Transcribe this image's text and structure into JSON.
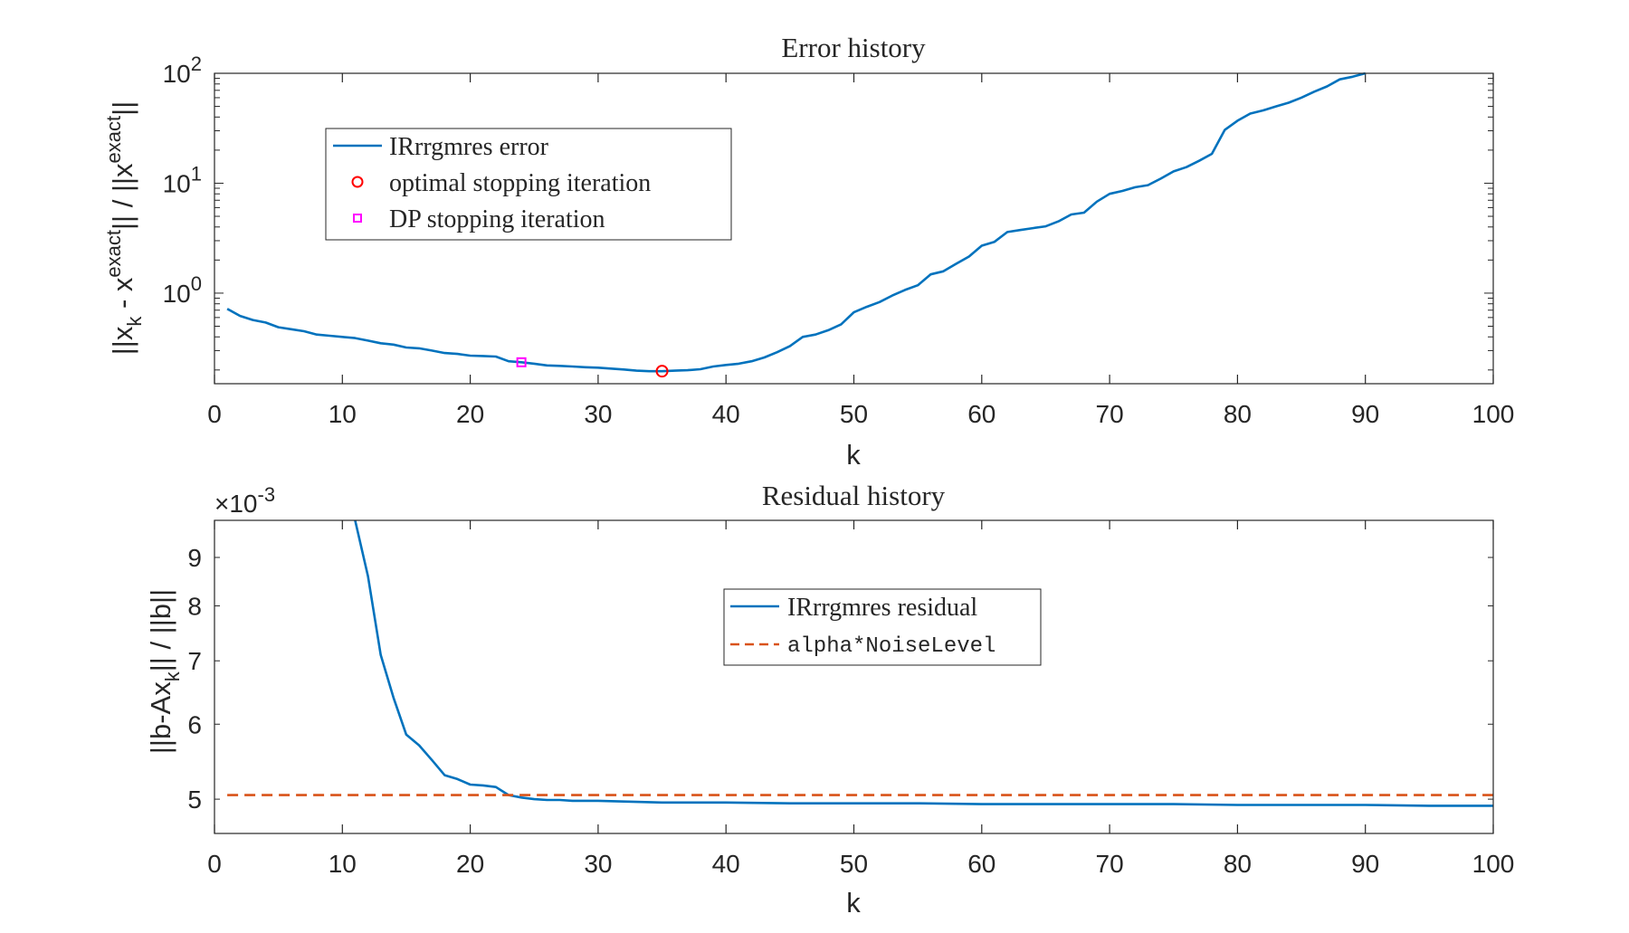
{
  "chart_data": [
    {
      "type": "line",
      "title": "Error history",
      "xlabel": "k",
      "ylabel_parts": [
        "||x",
        "k",
        " - x",
        "exact",
        "|| / ||x",
        "exact",
        "||"
      ],
      "yscale": "log",
      "xlim": [
        0,
        100
      ],
      "ylim": [
        0.15,
        100
      ],
      "xticks": [
        0,
        10,
        20,
        30,
        40,
        50,
        60,
        70,
        80,
        90,
        100
      ],
      "yticks": [
        {
          "value": 1,
          "base": "10",
          "exp": "0"
        },
        {
          "value": 10,
          "base": "10",
          "exp": "1"
        },
        {
          "value": 100,
          "base": "10",
          "exp": "2"
        }
      ],
      "legend_position": "top-left",
      "series": [
        {
          "name": "IRrrgmres error",
          "color": "#0072BD",
          "style": "solid",
          "x": [
            1,
            2,
            3,
            4,
            5,
            6,
            7,
            8,
            9,
            10,
            11,
            12,
            13,
            14,
            15,
            16,
            17,
            18,
            19,
            20,
            21,
            22,
            23,
            24,
            25,
            26,
            27,
            28,
            29,
            30,
            31,
            32,
            33,
            34,
            35,
            36,
            37,
            38,
            39,
            40,
            41,
            42,
            43,
            44,
            45,
            46,
            47,
            48,
            49,
            50,
            51,
            52,
            53,
            54,
            55,
            56,
            57,
            58,
            59,
            60,
            61,
            62,
            63,
            64,
            65,
            66,
            67,
            68,
            69,
            70,
            71,
            72,
            73,
            74,
            75,
            76,
            77,
            78,
            79,
            80,
            81,
            82,
            83,
            84,
            85,
            86,
            87,
            88,
            89,
            90
          ],
          "y": [
            0.72,
            0.62,
            0.57,
            0.54,
            0.49,
            0.47,
            0.45,
            0.42,
            0.41,
            0.4,
            0.39,
            0.37,
            0.35,
            0.34,
            0.32,
            0.315,
            0.3,
            0.285,
            0.28,
            0.27,
            0.268,
            0.265,
            0.24,
            0.235,
            0.228,
            0.22,
            0.218,
            0.215,
            0.212,
            0.21,
            0.206,
            0.202,
            0.197,
            0.195,
            0.195,
            0.197,
            0.199,
            0.203,
            0.215,
            0.222,
            0.228,
            0.24,
            0.26,
            0.29,
            0.33,
            0.4,
            0.42,
            0.46,
            0.52,
            0.67,
            0.75,
            0.83,
            0.95,
            1.07,
            1.18,
            1.48,
            1.58,
            1.85,
            2.15,
            2.7,
            2.93,
            3.6,
            3.75,
            3.9,
            4.05,
            4.5,
            5.2,
            5.4,
            6.8,
            8.0,
            8.5,
            9.2,
            9.6,
            11.0,
            12.8,
            14.0,
            16.0,
            18.5,
            30.5,
            37.0,
            43.0,
            46.0,
            50.0,
            54.0,
            60.0,
            68.0,
            76.0,
            88.0,
            93.0,
            100.0
          ]
        },
        {
          "name": "optimal stopping iteration",
          "color": "#FF0000",
          "marker": "circle",
          "x": [
            35
          ],
          "y": [
            0.195
          ]
        },
        {
          "name": "DP stopping iteration",
          "color": "#FF00FF",
          "marker": "square",
          "x": [
            24
          ],
          "y": [
            0.235
          ]
        }
      ]
    },
    {
      "type": "line",
      "title": "Residual history",
      "xlabel": "k",
      "ylabel_parts": [
        "||b-Ax",
        "k",
        "|| / ||b||"
      ],
      "yscale": "log",
      "xlim": [
        0,
        100
      ],
      "ylim": [
        0.0046,
        0.00985
      ],
      "exponent_label": {
        "prefix": "×10",
        "exp": "-3"
      },
      "xticks": [
        0,
        10,
        20,
        30,
        40,
        50,
        60,
        70,
        80,
        90,
        100
      ],
      "yticks": [
        {
          "value": 0.005,
          "label": "5"
        },
        {
          "value": 0.006,
          "label": "6"
        },
        {
          "value": 0.007,
          "label": "7"
        },
        {
          "value": 0.008,
          "label": "8"
        },
        {
          "value": 0.009,
          "label": "9"
        }
      ],
      "legend_position": "top-center",
      "series": [
        {
          "name": "IRrrgmres residual",
          "color": "#0072BD",
          "style": "solid",
          "x": [
            11,
            12,
            13,
            14,
            15,
            16,
            17,
            18,
            19,
            20,
            21,
            22,
            23,
            24,
            25,
            26,
            27,
            28,
            29,
            30,
            35,
            40,
            45,
            50,
            55,
            60,
            65,
            70,
            75,
            80,
            85,
            90,
            95,
            100
          ],
          "y": [
            0.00985,
            0.0086,
            0.0071,
            0.0064,
            0.00585,
            0.0057,
            0.0055,
            0.0053,
            0.00525,
            0.00518,
            0.00517,
            0.00515,
            0.00505,
            0.00502,
            0.005,
            0.00499,
            0.00499,
            0.00498,
            0.00498,
            0.00498,
            0.00496,
            0.00496,
            0.00495,
            0.00495,
            0.00495,
            0.00494,
            0.00494,
            0.00494,
            0.00494,
            0.00493,
            0.00493,
            0.00493,
            0.00492,
            0.00492
          ]
        },
        {
          "name": "alpha*NoiseLevel",
          "color": "#D95319",
          "style": "dashed",
          "x": [
            1,
            100
          ],
          "y": [
            0.00505,
            0.00505
          ]
        }
      ]
    }
  ]
}
